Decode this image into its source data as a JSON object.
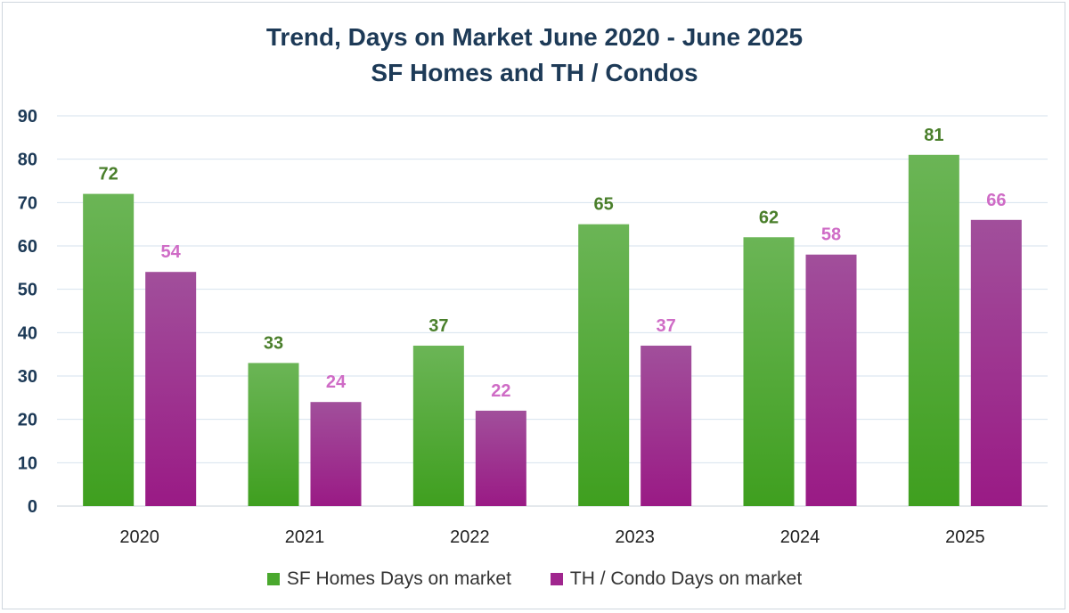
{
  "chart_data": {
    "type": "bar",
    "title_line1": "Trend, Days on Market June 2020 - June 2025",
    "title_line2": "SF Homes and TH / Condos",
    "categories": [
      "2020",
      "2021",
      "2022",
      "2023",
      "2024",
      "2025"
    ],
    "series": [
      {
        "name": "SF Homes Days on market",
        "values": [
          72,
          33,
          37,
          65,
          62,
          81
        ],
        "color": "#4aa82e",
        "label_color": "#4a7f2b"
      },
      {
        "name": "TH / Condo Days on market",
        "values": [
          54,
          24,
          22,
          37,
          58,
          66
        ],
        "color": "#a0268e",
        "label_color": "#cf6cc6"
      }
    ],
    "ylim": [
      0,
      90
    ],
    "yticks": [
      "0",
      "10",
      "20",
      "30",
      "40",
      "50",
      "60",
      "70",
      "80",
      "90"
    ],
    "grid": true,
    "legend_position": "bottom"
  }
}
